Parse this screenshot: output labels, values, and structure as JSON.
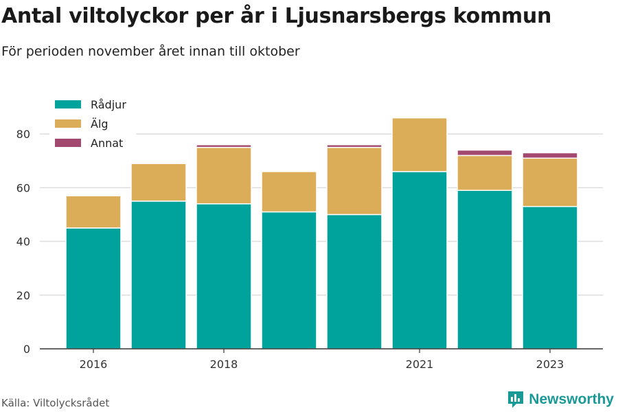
{
  "title": "Antal viltolyckor per år i Ljusnarsbergs kommun",
  "subtitle": "För perioden november året innan till oktober",
  "source": "Källa: Viltolycksrådet",
  "brand": {
    "name": "Newsworthy",
    "icon": "newsworthy-logo-icon"
  },
  "colors": {
    "Rådjur": "#00a39b",
    "Älg": "#dcad59",
    "Annat": "#a3496f",
    "grid": "#dddddd",
    "axis": "#333333"
  },
  "chart_data": {
    "type": "bar",
    "stacked": true,
    "categories": [
      2016,
      2017,
      2018,
      2019,
      2020,
      2021,
      2022,
      2023
    ],
    "x_tick_labels": [
      "2016",
      "2018",
      "2021",
      "2023"
    ],
    "series": [
      {
        "name": "Rådjur",
        "values": [
          45,
          55,
          54,
          51,
          50,
          66,
          59,
          53
        ]
      },
      {
        "name": "Älg",
        "values": [
          12,
          14,
          21,
          15,
          25,
          20,
          13,
          18
        ]
      },
      {
        "name": "Annat",
        "values": [
          0,
          0,
          1,
          0,
          1,
          0,
          2,
          2
        ]
      }
    ],
    "ylim": [
      0,
      90
    ],
    "yticks": [
      0,
      20,
      40,
      60,
      80
    ],
    "grid": true,
    "legend": "top-left"
  }
}
